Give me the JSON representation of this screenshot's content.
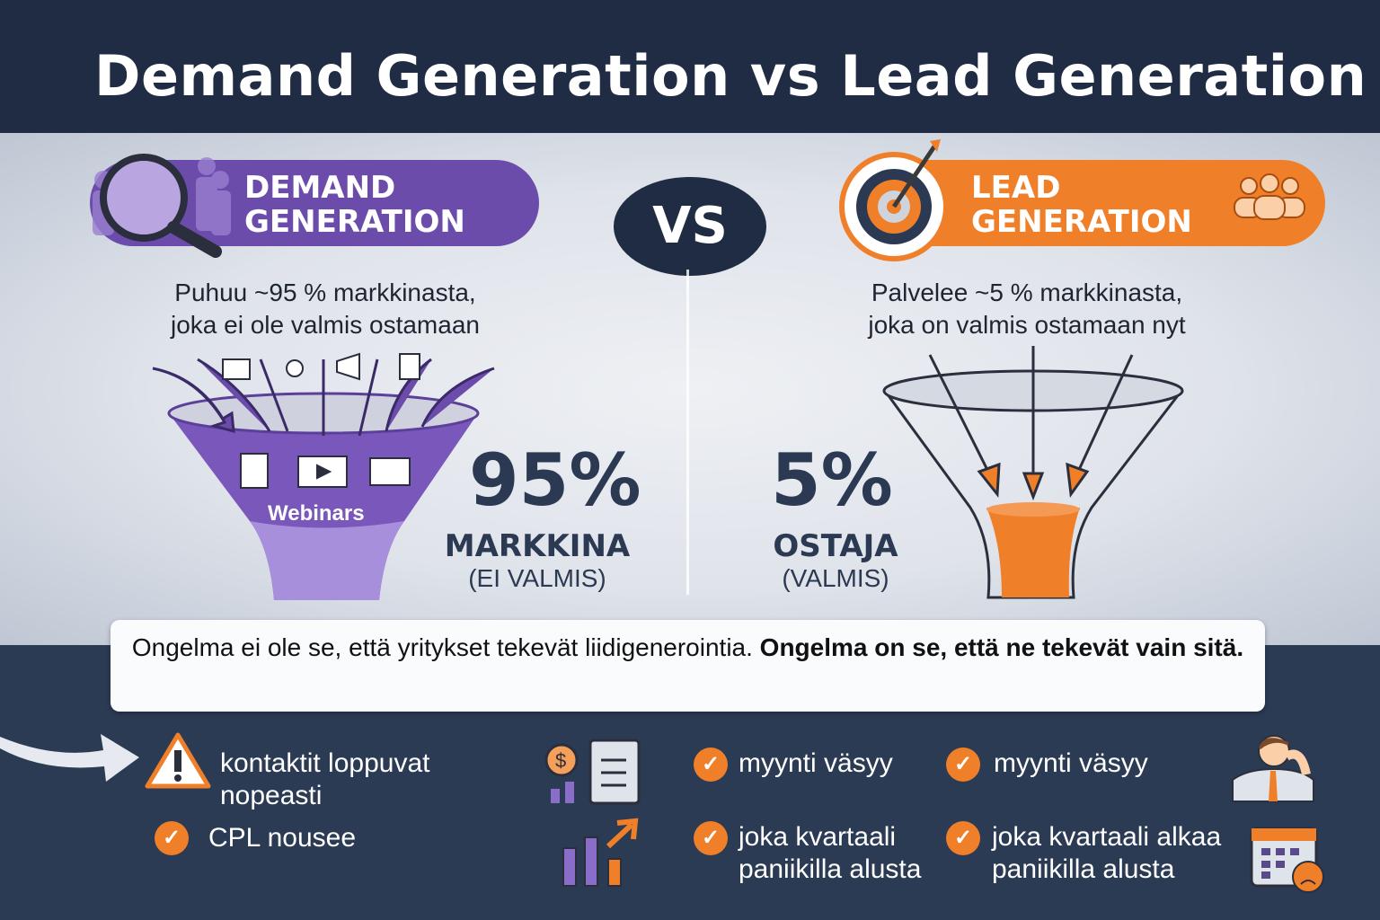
{
  "title": "Demand Generation vs Lead Generation",
  "vs": "VS",
  "demand": {
    "label_line1": "DEMAND",
    "label_line2": "GENERATION",
    "desc_line1": "Puhuu ~95 % markkinasta,",
    "desc_line2": "joka ei ole valmis ostamaan",
    "funnel_label": "Webinars",
    "percent": "95%",
    "segment": "MARKKINA",
    "segment_note": "(EI VALMIS)",
    "color": "#6b4cab"
  },
  "lead": {
    "label_line1": "LEAD",
    "label_line2": "GENERATION",
    "desc_line1": "Palvelee ~5 % markkinasta,",
    "desc_line2": "joka on valmis ostamaan nyt",
    "percent": "5%",
    "segment": "OSTAJA",
    "segment_note": "(VALMIS)",
    "color": "#f07f2a"
  },
  "quote": {
    "normal": "Ongelma ei ole se, että yritykset tekevät liidigenerointia. ",
    "bold": "Ongelma on se, että ne tekevät vain sitä."
  },
  "consequences": {
    "warning": "kontaktit loppuvat nopeasti",
    "cpl": "CPL nousee",
    "col2": [
      "myynti väsyy",
      "joka kvartaali paniikilla alusta"
    ],
    "col3": [
      "myynti väsyy",
      "joka kvartaali alkaa paniikilla alusta"
    ]
  }
}
